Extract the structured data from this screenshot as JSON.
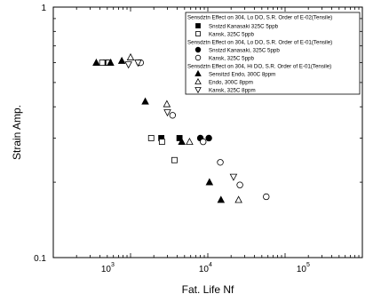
{
  "chart_data": {
    "type": "scatter",
    "title": "",
    "xlabel": "Fat. Life Nf",
    "ylabel": "Strain Amp.",
    "x_scale": "log",
    "y_scale": "log",
    "xlim": [
      100,
      1000000
    ],
    "ylim": [
      0.1,
      1
    ],
    "grid": false,
    "legend_position": "top-right",
    "x_ticks": [
      {
        "value": 1000,
        "base": "10",
        "exp": "3"
      },
      {
        "value": 10000,
        "base": "10",
        "exp": "4"
      },
      {
        "value": 100000,
        "base": "10",
        "exp": "5"
      }
    ],
    "y_ticks": [
      {
        "value": 0.1,
        "label": "0.1"
      },
      {
        "value": 1,
        "label": "1"
      }
    ],
    "legend": {
      "groups": [
        {
          "title": "Sensdztn Effect on 304, Lo DO, S.R. Order of E-02(Tensile)",
          "entries": [
            {
              "series": 0,
              "label": "Snstzd Kanasaki 325C 5ppb"
            },
            {
              "series": 1,
              "label": "Kansk, 325C 5ppb"
            }
          ]
        },
        {
          "title": "Sensdztn Effect on 304, Lo DO, S.R. Order of E-01(Tensile)",
          "entries": [
            {
              "series": 2,
              "label": "Snstzd Kanasaki, 325C 5ppb"
            },
            {
              "series": 3,
              "label": "Kansk, 325C 5ppb"
            }
          ]
        },
        {
          "title": "Sensdztn Effect on 304, Hi DO, S.R. Order of E-01(Tensile)",
          "entries": [
            {
              "series": 4,
              "label": "Sensitzd Endo, 300C 8ppm"
            },
            {
              "series": 5,
              "label": "Endo, 300C 8ppm"
            },
            {
              "series": 6,
              "label": "Kansk, 325C 8ppm"
            }
          ]
        }
      ]
    },
    "series": [
      {
        "name": "Snstzd Kanasaki 325C 5ppb",
        "marker": "square",
        "filled": true,
        "points": [
          [
            480,
            0.6
          ],
          [
            2500,
            0.3
          ],
          [
            4300,
            0.3
          ]
        ]
      },
      {
        "name": "Kansk, 325C 5ppb",
        "marker": "square",
        "filled": false,
        "points": [
          [
            430,
            0.6
          ],
          [
            520,
            0.6
          ],
          [
            1850,
            0.3
          ],
          [
            2550,
            0.29
          ],
          [
            3700,
            0.245
          ]
        ]
      },
      {
        "name": "Snstzd Kanasaki, 325C 5ppb",
        "marker": "circle",
        "filled": true,
        "points": [
          [
            1300,
            0.6
          ],
          [
            8000,
            0.3
          ],
          [
            10300,
            0.3
          ]
        ]
      },
      {
        "name": "Kansk, 325C 5ppb",
        "marker": "circle",
        "filled": false,
        "points": [
          [
            1350,
            0.6
          ],
          [
            3500,
            0.37
          ],
          [
            8700,
            0.29
          ],
          [
            14500,
            0.24
          ],
          [
            26000,
            0.195
          ],
          [
            57000,
            0.175
          ]
        ]
      },
      {
        "name": "Sensitzd Endo, 300C 8ppm",
        "marker": "triangle-up",
        "filled": true,
        "points": [
          [
            360,
            0.6
          ],
          [
            550,
            0.6
          ],
          [
            770,
            0.61
          ],
          [
            1550,
            0.42
          ],
          [
            4600,
            0.29
          ],
          [
            10500,
            0.2
          ],
          [
            14800,
            0.17
          ]
        ]
      },
      {
        "name": "Endo, 300C 8ppm",
        "marker": "triangle-up",
        "filled": false,
        "points": [
          [
            1000,
            0.63
          ],
          [
            2950,
            0.41
          ],
          [
            5800,
            0.29
          ],
          [
            25000,
            0.17
          ]
        ]
      },
      {
        "name": "Kansk, 325C 8ppm",
        "marker": "triangle-down",
        "filled": false,
        "points": [
          [
            940,
            0.59
          ],
          [
            1250,
            0.6
          ],
          [
            3000,
            0.38
          ],
          [
            21500,
            0.21
          ]
        ]
      }
    ]
  }
}
